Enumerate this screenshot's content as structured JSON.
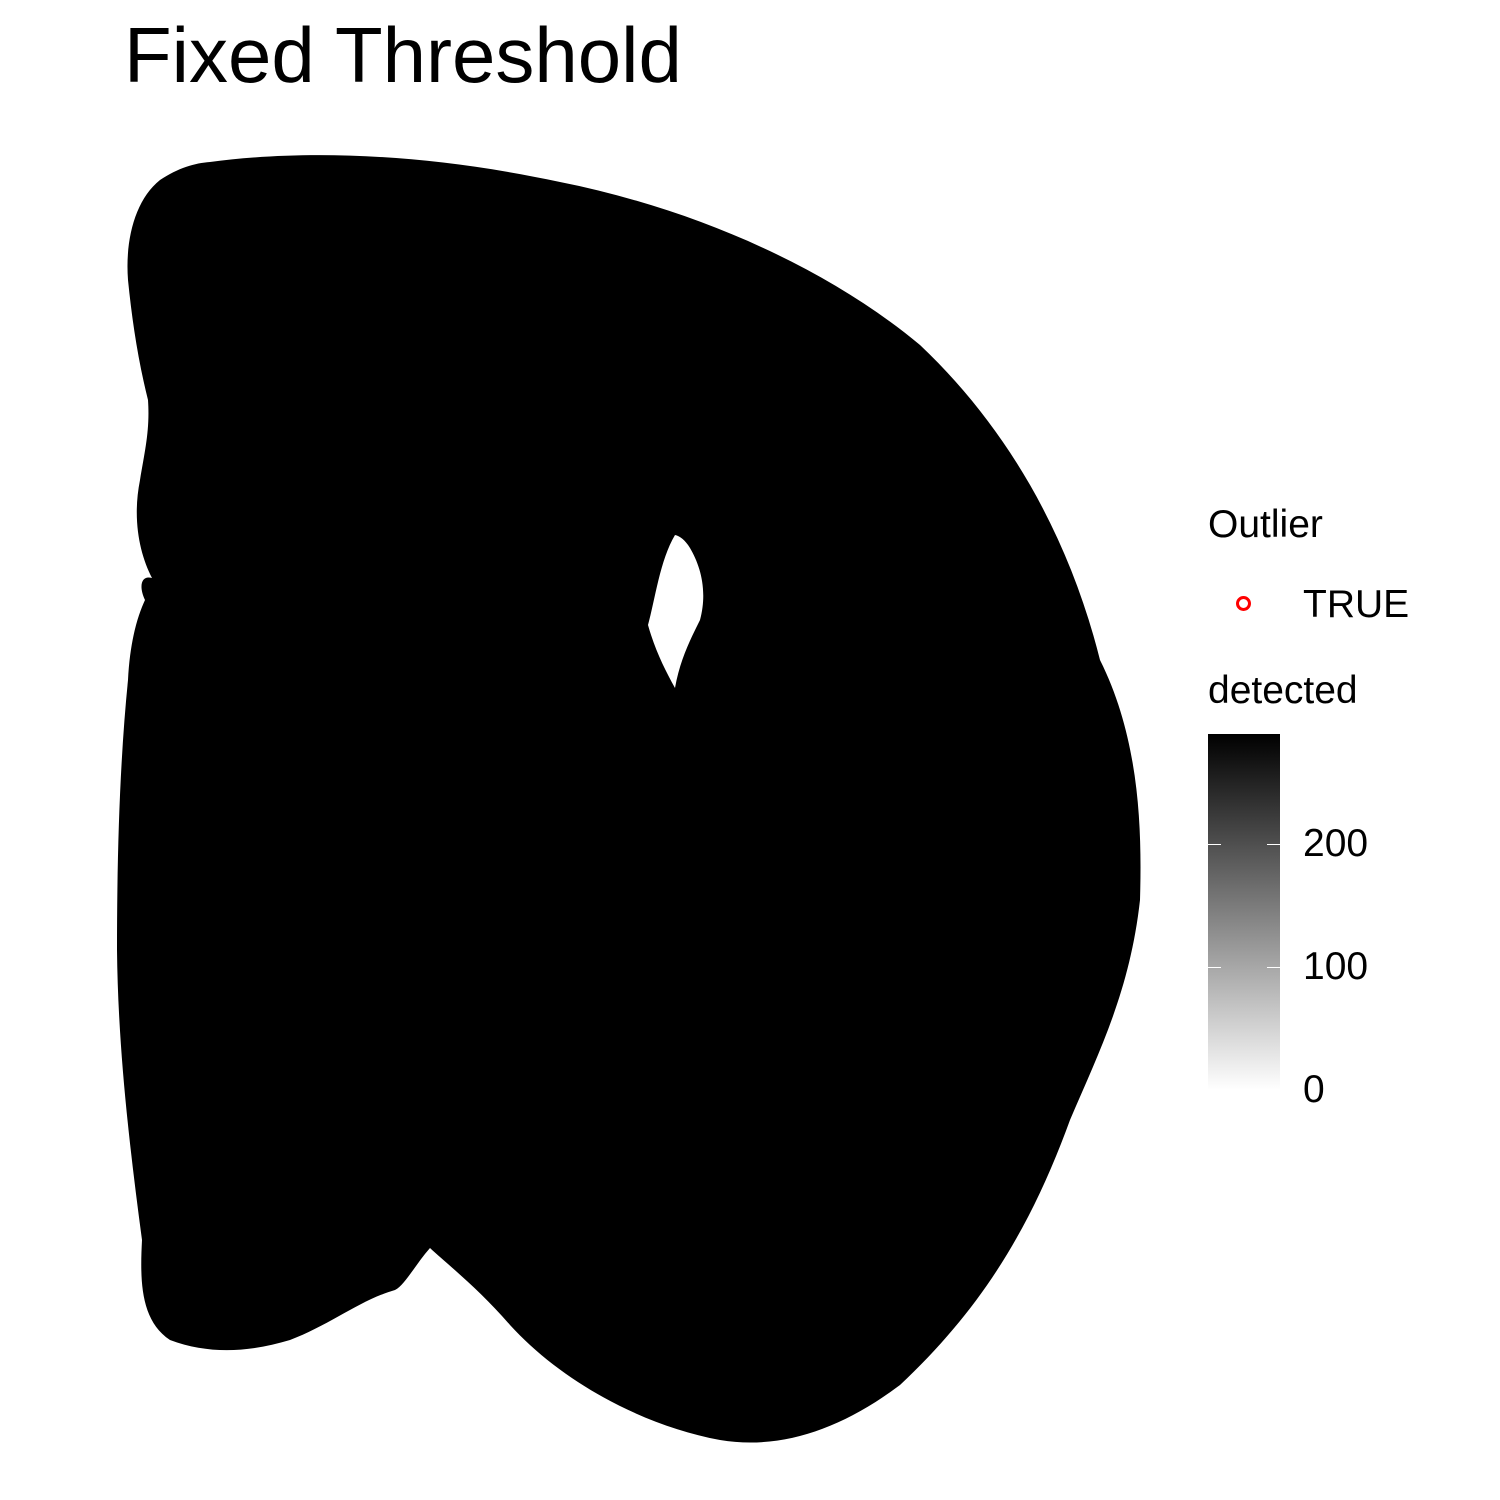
{
  "chart_data": {
    "type": "scatter",
    "title": "Fixed Threshold",
    "xlabel": "",
    "ylabel": "",
    "axes_visible": false,
    "grid": false,
    "point_color": "#ff0000",
    "point_fill": "#ff0000",
    "legend_placement": "right",
    "legend": {
      "shape": {
        "title": "Outlier",
        "entries": [
          {
            "label": "TRUE",
            "color": "#ff0000",
            "shape": "open-circle"
          }
        ]
      },
      "fill": {
        "title": "detected",
        "type": "gradient",
        "low_color": "#ffffff",
        "high_color": "#000000",
        "limits": [
          0,
          290
        ],
        "ticks": [
          {
            "value": 0,
            "label": "0"
          },
          {
            "value": 100,
            "label": "100"
          },
          {
            "value": 200,
            "label": "200"
          }
        ]
      }
    },
    "series": [
      {
        "name": "TRUE",
        "description_outline": "dense cloud of points forming a coronal tissue section; all spots flagged as outliers",
        "hole": "small unfilled ventricle region near center"
      }
    ]
  }
}
